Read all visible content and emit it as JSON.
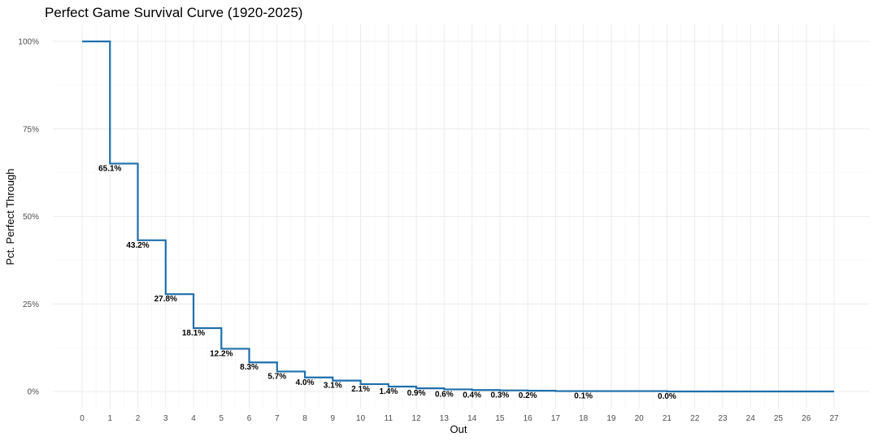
{
  "chart_data": {
    "type": "line",
    "step": true,
    "title": "Perfect Game Survival Curve (1920-2025)",
    "xlabel": "Out",
    "ylabel": "Pct. Perfect Through",
    "xlim": [
      0,
      27
    ],
    "ylim": [
      0,
      100
    ],
    "x_ticks": [
      0,
      1,
      2,
      3,
      4,
      5,
      6,
      7,
      8,
      9,
      10,
      11,
      12,
      13,
      14,
      15,
      16,
      17,
      18,
      19,
      20,
      21,
      22,
      23,
      24,
      25,
      26,
      27
    ],
    "y_ticks": [
      0,
      25,
      50,
      75,
      100
    ],
    "y_tick_labels": [
      "0%",
      "25%",
      "50%",
      "75%",
      "100%"
    ],
    "grid": true,
    "legend": "none",
    "series_color": "#1f6fad",
    "x": [
      0,
      1,
      2,
      3,
      4,
      5,
      6,
      7,
      8,
      9,
      10,
      11,
      12,
      13,
      14,
      15,
      16,
      17,
      18,
      19,
      20,
      21,
      22,
      23,
      24,
      25,
      26,
      27
    ],
    "values": [
      100,
      65.1,
      43.2,
      27.8,
      18.1,
      12.2,
      8.3,
      5.7,
      4.0,
      3.1,
      2.1,
      1.4,
      0.9,
      0.6,
      0.4,
      0.3,
      0.2,
      0.1,
      0.1,
      0.1,
      0.1,
      0.0,
      0.0,
      0.0,
      0.0,
      0.0,
      0.0,
      0.0
    ],
    "data_labels": [
      {
        "x": 1,
        "y": 65.1,
        "text": "65.1%"
      },
      {
        "x": 2,
        "y": 43.2,
        "text": "43.2%"
      },
      {
        "x": 3,
        "y": 27.8,
        "text": "27.8%"
      },
      {
        "x": 4,
        "y": 18.1,
        "text": "18.1%"
      },
      {
        "x": 5,
        "y": 12.2,
        "text": "12.2%"
      },
      {
        "x": 6,
        "y": 8.3,
        "text": "8.3%"
      },
      {
        "x": 7,
        "y": 5.7,
        "text": "5.7%"
      },
      {
        "x": 8,
        "y": 4.0,
        "text": "4.0%"
      },
      {
        "x": 9,
        "y": 3.1,
        "text": "3.1%"
      },
      {
        "x": 10,
        "y": 2.1,
        "text": "2.1%"
      },
      {
        "x": 11,
        "y": 1.4,
        "text": "1.4%"
      },
      {
        "x": 12,
        "y": 0.9,
        "text": "0.9%"
      },
      {
        "x": 13,
        "y": 0.6,
        "text": "0.6%"
      },
      {
        "x": 14,
        "y": 0.4,
        "text": "0.4%"
      },
      {
        "x": 15,
        "y": 0.3,
        "text": "0.3%"
      },
      {
        "x": 16,
        "y": 0.2,
        "text": "0.2%"
      },
      {
        "x": 18,
        "y": 0.1,
        "text": "0.1%"
      },
      {
        "x": 21,
        "y": 0.0,
        "text": "0.0%"
      }
    ]
  }
}
